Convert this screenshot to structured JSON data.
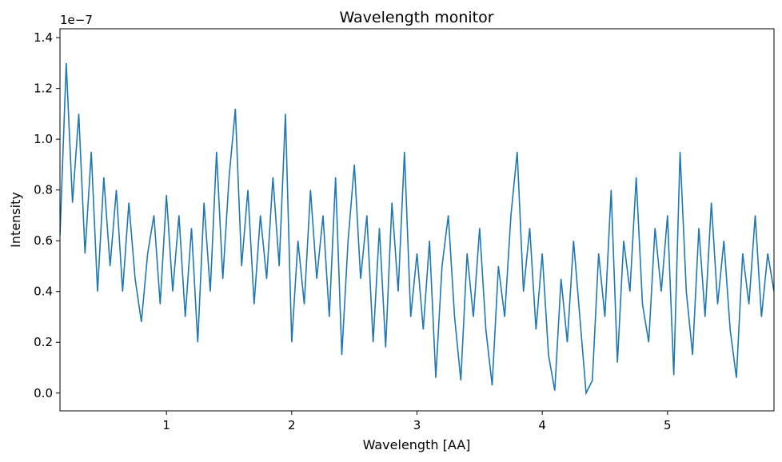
{
  "chart_data": {
    "type": "line",
    "title": "Wavelength monitor",
    "x_label": "Wavelength [AA]",
    "y_label": "Intensity",
    "y_offset_label": "1e−7",
    "x": [
      0.15,
      0.2,
      0.25,
      0.3,
      0.35,
      0.4,
      0.45,
      0.5,
      0.55,
      0.6,
      0.65,
      0.7,
      0.75,
      0.8,
      0.85,
      0.9,
      0.95,
      1.0,
      1.05,
      1.1,
      1.15,
      1.2,
      1.25,
      1.3,
      1.35,
      1.4,
      1.45,
      1.5,
      1.55,
      1.6,
      1.65,
      1.7,
      1.75,
      1.8,
      1.85,
      1.9,
      1.95,
      2.0,
      2.05,
      2.1,
      2.15,
      2.2,
      2.25,
      2.3,
      2.35,
      2.4,
      2.45,
      2.5,
      2.55,
      2.6,
      2.65,
      2.7,
      2.75,
      2.8,
      2.85,
      2.9,
      2.95,
      3.0,
      3.05,
      3.1,
      3.15,
      3.2,
      3.25,
      3.3,
      3.35,
      3.4,
      3.45,
      3.5,
      3.55,
      3.6,
      3.65,
      3.7,
      3.75,
      3.8,
      3.85,
      3.9,
      3.95,
      4.0,
      4.05,
      4.1,
      4.15,
      4.2,
      4.25,
      4.3,
      4.35,
      4.4,
      4.45,
      4.5,
      4.55,
      4.6,
      4.65,
      4.7,
      4.75,
      4.8,
      4.85,
      4.9,
      4.95,
      5.0,
      5.05,
      5.1,
      5.15,
      5.2,
      5.25,
      5.3,
      5.35,
      5.4,
      5.45,
      5.5,
      5.55,
      5.6,
      5.65,
      5.7,
      5.75,
      5.8,
      5.85
    ],
    "series": [
      {
        "name": "Intensity",
        "color": "#1f77b4",
        "values": [
          0.62,
          1.3,
          0.75,
          1.1,
          0.55,
          0.95,
          0.4,
          0.85,
          0.5,
          0.8,
          0.4,
          0.75,
          0.45,
          0.28,
          0.55,
          0.7,
          0.35,
          0.78,
          0.4,
          0.7,
          0.3,
          0.65,
          0.2,
          0.75,
          0.4,
          0.95,
          0.45,
          0.85,
          1.12,
          0.5,
          0.8,
          0.35,
          0.7,
          0.45,
          0.85,
          0.5,
          1.1,
          0.2,
          0.6,
          0.35,
          0.8,
          0.45,
          0.7,
          0.3,
          0.85,
          0.15,
          0.6,
          0.9,
          0.45,
          0.7,
          0.2,
          0.65,
          0.18,
          0.75,
          0.4,
          0.95,
          0.3,
          0.55,
          0.25,
          0.6,
          0.06,
          0.5,
          0.7,
          0.3,
          0.05,
          0.55,
          0.3,
          0.65,
          0.25,
          0.03,
          0.5,
          0.3,
          0.7,
          0.95,
          0.4,
          0.65,
          0.25,
          0.55,
          0.15,
          0.01,
          0.45,
          0.2,
          0.6,
          0.3,
          0.0,
          0.05,
          0.55,
          0.3,
          0.8,
          0.12,
          0.6,
          0.4,
          0.85,
          0.35,
          0.2,
          0.65,
          0.4,
          0.7,
          0.07,
          0.95,
          0.4,
          0.15,
          0.65,
          0.3,
          0.75,
          0.35,
          0.6,
          0.25,
          0.06,
          0.55,
          0.35,
          0.7,
          0.3,
          0.55,
          0.4
        ]
      }
    ],
    "xlim": [
      0.15,
      5.85
    ],
    "xticks": [
      1,
      2,
      3,
      4,
      5
    ],
    "ylim": [
      -0.07,
      1.435
    ],
    "yticks": [
      {
        "value": 0,
        "label": "0.0"
      },
      0.2,
      0.4,
      0.6,
      0.8,
      {
        "value": 1,
        "label": "1.0"
      },
      1.2,
      1.4
    ]
  }
}
